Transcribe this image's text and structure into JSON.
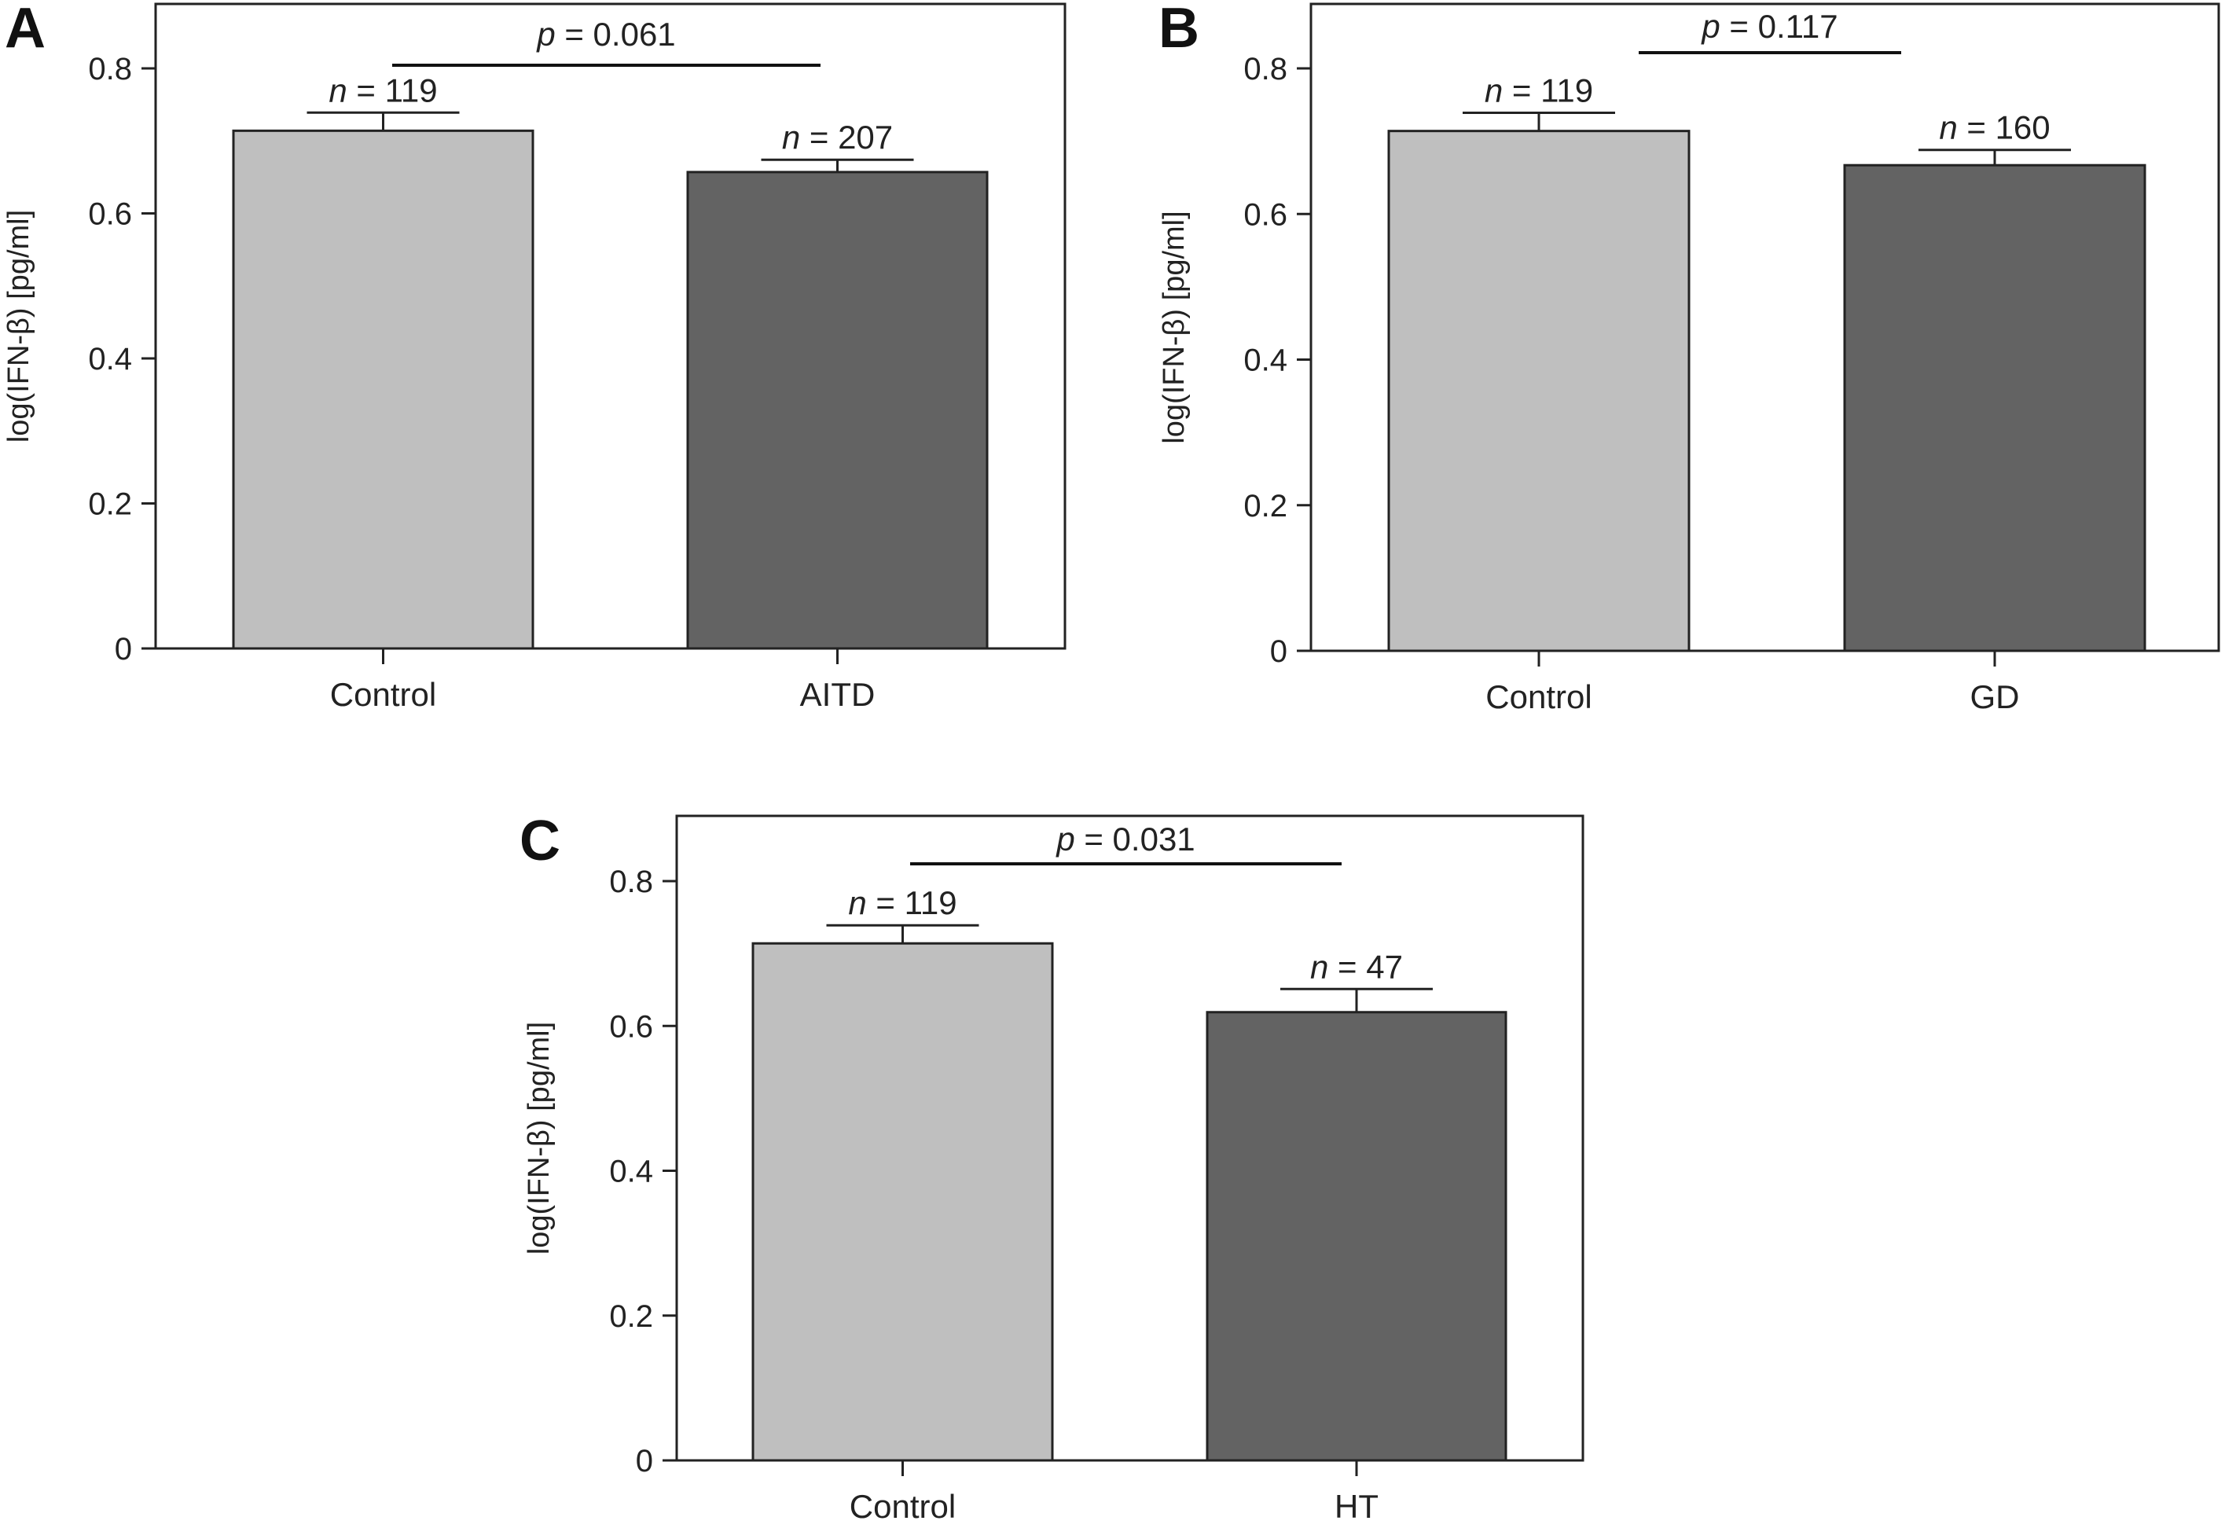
{
  "chart_data": [
    {
      "panel": "A",
      "type": "bar",
      "categories": [
        "Control",
        "AITD"
      ],
      "values": [
        0.714,
        0.657
      ],
      "errors": [
        0.025,
        0.017
      ],
      "n_labels": [
        "119",
        "207"
      ],
      "ylabel": "log(IFN-β) [pg/ml]",
      "yticks": [
        "0",
        "0.2",
        "0.4",
        "0.6",
        "0.8"
      ],
      "ylim": [
        0,
        0.9
      ],
      "p_value": "0.061",
      "colors": [
        "#bfbfbf",
        "#636363"
      ]
    },
    {
      "panel": "B",
      "type": "bar",
      "categories": [
        "Control",
        "GD"
      ],
      "values": [
        0.714,
        0.667
      ],
      "errors": [
        0.025,
        0.021
      ],
      "n_labels": [
        "119",
        "160"
      ],
      "ylabel": "log(IFN-β) [pg/ml]",
      "yticks": [
        "0",
        "0.2",
        "0.4",
        "0.6",
        "0.8"
      ],
      "ylim": [
        0,
        0.9
      ],
      "p_value": "0.117",
      "colors": [
        "#bfbfbf",
        "#636363"
      ]
    },
    {
      "panel": "C",
      "type": "bar",
      "categories": [
        "Control",
        "HT"
      ],
      "values": [
        0.714,
        0.619
      ],
      "errors": [
        0.025,
        0.032
      ],
      "n_labels": [
        "119",
        "47"
      ],
      "ylabel": "log(IFN-β) [pg/ml]",
      "yticks": [
        "0",
        "0.2",
        "0.4",
        "0.6",
        "0.8"
      ],
      "ylim": [
        0,
        0.9
      ],
      "p_value": "0.031",
      "colors": [
        "#bfbfbf",
        "#636363"
      ]
    }
  ]
}
